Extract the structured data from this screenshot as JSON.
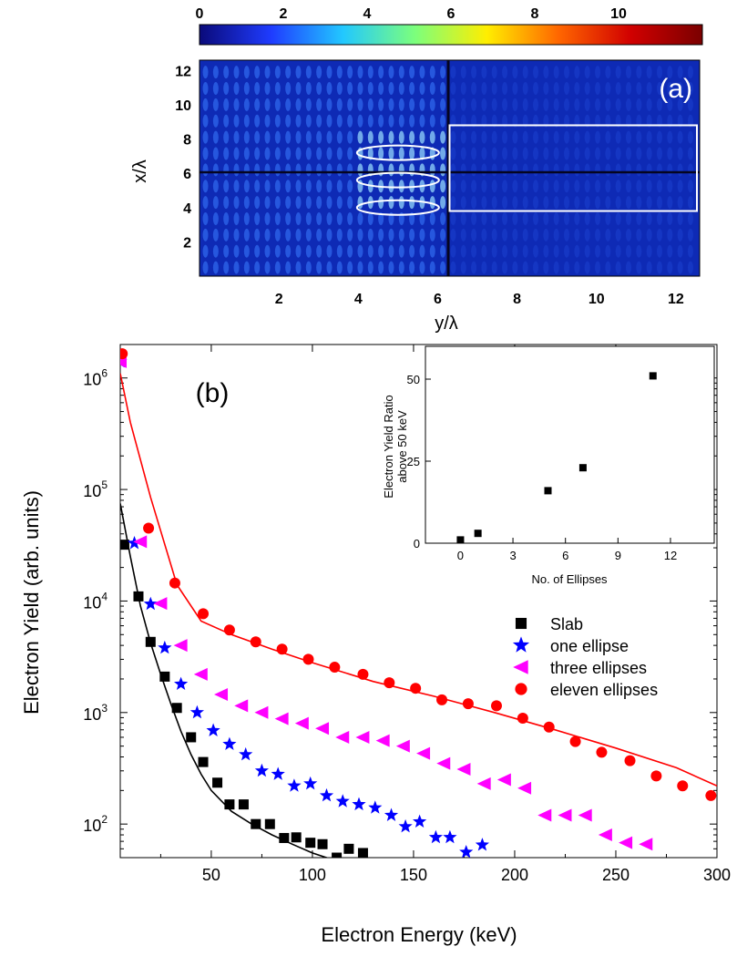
{
  "panel_a": {
    "label": "(a)",
    "colorbar_ticks": [
      "0",
      "2",
      "4",
      "6",
      "8",
      "10"
    ],
    "colorbar_colors": [
      "#0a0a7a",
      "#1f3cff",
      "#22c8ff",
      "#7cff7c",
      "#ffee00",
      "#ff6600",
      "#d10000",
      "#7a0000"
    ],
    "background_color": "#0e2ab5",
    "xlabel": "y/λ",
    "ylabel": "x/λ",
    "xticks": [
      "2",
      "4",
      "6",
      "8",
      "10",
      "12"
    ],
    "yticks": [
      "2",
      "4",
      "6",
      "8",
      "10",
      "12"
    ],
    "colorbar_range": [
      0,
      12
    ],
    "x_range": [
      0,
      12.6
    ],
    "y_range": [
      0,
      12.6
    ],
    "ellipse_centers": [
      {
        "y": 5.0,
        "x": 4.0
      },
      {
        "y": 5.0,
        "x": 5.6
      },
      {
        "y": 5.0,
        "x": 7.2
      }
    ],
    "slab_region": {
      "y_start": 6.3,
      "y_end": 12.6,
      "x_start": 3.8,
      "x_end": 8.8
    }
  },
  "chart_data": {
    "type": "scatter",
    "label": "(b)",
    "xlabel": "Electron Energy (keV)",
    "ylabel": "Electron Yield (arb. units)",
    "xlim": [
      5,
      300
    ],
    "ylim_log10": [
      1.699,
      6.3
    ],
    "xticks": [
      "50",
      "100",
      "150",
      "200",
      "250",
      "300"
    ],
    "yticks": [
      {
        "base": "10",
        "exp": "2",
        "log": 2
      },
      {
        "base": "10",
        "exp": "3",
        "log": 3
      },
      {
        "base": "10",
        "exp": "4",
        "log": 4
      },
      {
        "base": "10",
        "exp": "5",
        "log": 5
      },
      {
        "base": "10",
        "exp": "6",
        "log": 6
      }
    ],
    "scale": "log-y",
    "legend_position": "right-middle",
    "series": [
      {
        "name": "Slab",
        "color": "#000000",
        "marker": "square",
        "x": [
          7,
          14,
          20,
          27,
          33,
          40,
          46,
          53,
          59,
          66,
          72,
          79,
          86,
          92,
          99,
          105,
          112,
          118,
          125
        ],
        "y": [
          32000,
          11000,
          4300,
          2100,
          1100,
          600,
          360,
          235,
          150,
          150,
          100,
          100,
          75,
          76,
          68,
          66,
          50,
          60,
          55
        ]
      },
      {
        "name": "one ellipse",
        "color": "#0000ff",
        "marker": "star",
        "x": [
          5,
          12,
          20,
          27,
          35,
          43,
          51,
          59,
          67,
          75,
          83,
          91,
          99,
          107,
          115,
          123,
          131,
          139,
          146,
          153,
          161,
          168,
          176,
          184
        ],
        "y": [
          1400000,
          33000,
          9400,
          3800,
          1800,
          1000,
          690,
          520,
          420,
          300,
          280,
          220,
          230,
          180,
          160,
          150,
          140,
          120,
          95,
          105,
          76,
          76,
          56,
          65
        ]
      },
      {
        "name": "three ellipses",
        "color": "#ff00ff",
        "marker": "triangle-left",
        "x": [
          5,
          15,
          25,
          35,
          45,
          55,
          65,
          75,
          85,
          95,
          105,
          115,
          125,
          135,
          145,
          155,
          165,
          175,
          185,
          195,
          205,
          215,
          225,
          235,
          245,
          255,
          265
        ],
        "y": [
          1400000,
          34000,
          9500,
          4000,
          2200,
          1450,
          1150,
          1000,
          880,
          800,
          720,
          600,
          600,
          560,
          500,
          430,
          350,
          310,
          230,
          250,
          210,
          120,
          120,
          120,
          80,
          68,
          66
        ]
      },
      {
        "name": "eleven ellipses",
        "color": "#ff0000",
        "marker": "circle",
        "x": [
          6,
          19,
          32,
          46,
          59,
          72,
          85,
          98,
          111,
          125,
          138,
          151,
          164,
          177,
          191,
          204,
          217,
          230,
          243,
          257,
          270,
          283,
          297
        ],
        "y": [
          1650000,
          45000,
          14500,
          7700,
          5500,
          4300,
          3700,
          3000,
          2550,
          2200,
          1850,
          1650,
          1300,
          1200,
          1150,
          890,
          740,
          550,
          440,
          370,
          270,
          220,
          180
        ]
      }
    ],
    "fits": [
      {
        "series": "Slab",
        "color": "#000000",
        "x": [
          5,
          10,
          15,
          20,
          25,
          30,
          35,
          40,
          45,
          50,
          60,
          70,
          80,
          90,
          100,
          110
        ],
        "y": [
          75000,
          25000,
          9000,
          4200,
          2200,
          1200,
          680,
          420,
          280,
          200,
          130,
          100,
          80,
          66,
          55,
          48
        ]
      },
      {
        "series": "eleven ellipses",
        "color": "#ff0000",
        "x": [
          5,
          10,
          20,
          33,
          45,
          60,
          80,
          100,
          130,
          160,
          190,
          220,
          250,
          280,
          300
        ],
        "y": [
          1100000,
          400000,
          85000,
          14000,
          6600,
          5000,
          3700,
          2800,
          1900,
          1400,
          1000,
          700,
          480,
          320,
          220
        ]
      }
    ],
    "inset": {
      "xlabel": "No.  of Ellipses",
      "ylabel_line1": "Electron Yield  Ratio",
      "ylabel_line2": "above 50 keV",
      "xticks": [
        "0",
        "3",
        "6",
        "9",
        "12"
      ],
      "yticks": [
        "0",
        "25",
        "50"
      ],
      "xlim": [
        -2,
        14.5
      ],
      "ylim": [
        0,
        60
      ],
      "x": [
        0,
        1,
        5,
        7,
        11
      ],
      "y": [
        1,
        3,
        16,
        23,
        51
      ]
    }
  }
}
